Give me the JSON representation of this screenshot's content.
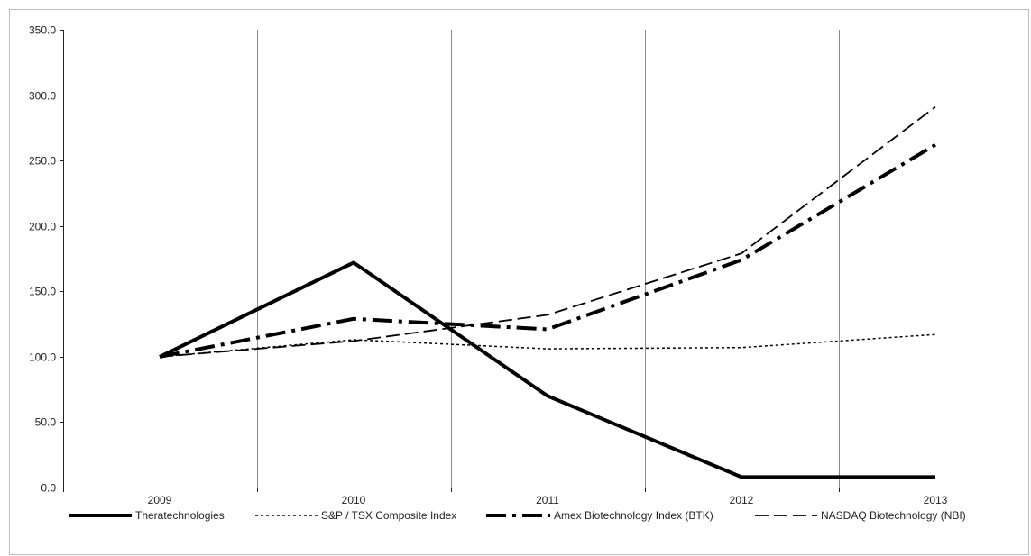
{
  "chart_data": {
    "type": "line",
    "title": "",
    "xlabel": "",
    "ylabel": "",
    "categories": [
      "2009",
      "2010",
      "2011",
      "2012",
      "2013"
    ],
    "ylim": [
      0,
      350
    ],
    "yticks": [
      "0.0",
      "50.0",
      "100.0",
      "150.0",
      "200.0",
      "250.0",
      "300.0",
      "350.0"
    ],
    "grid": "vertical",
    "legend_position": "bottom",
    "series": [
      {
        "name": "Theratechnologies",
        "values": [
          100,
          172,
          70,
          8,
          8
        ],
        "style": "solid-thick"
      },
      {
        "name": "S&P / TSX Composite Index",
        "values": [
          100,
          113,
          106,
          107,
          117
        ],
        "style": "dotted"
      },
      {
        "name": "Amex Biotechnology Index (BTK)",
        "values": [
          100,
          129,
          121,
          174,
          262
        ],
        "style": "dash-dot-thick"
      },
      {
        "name": "NASDAQ Biotechnology (NBI)",
        "values": [
          100,
          112,
          132,
          179,
          291
        ],
        "style": "dashed"
      }
    ]
  }
}
